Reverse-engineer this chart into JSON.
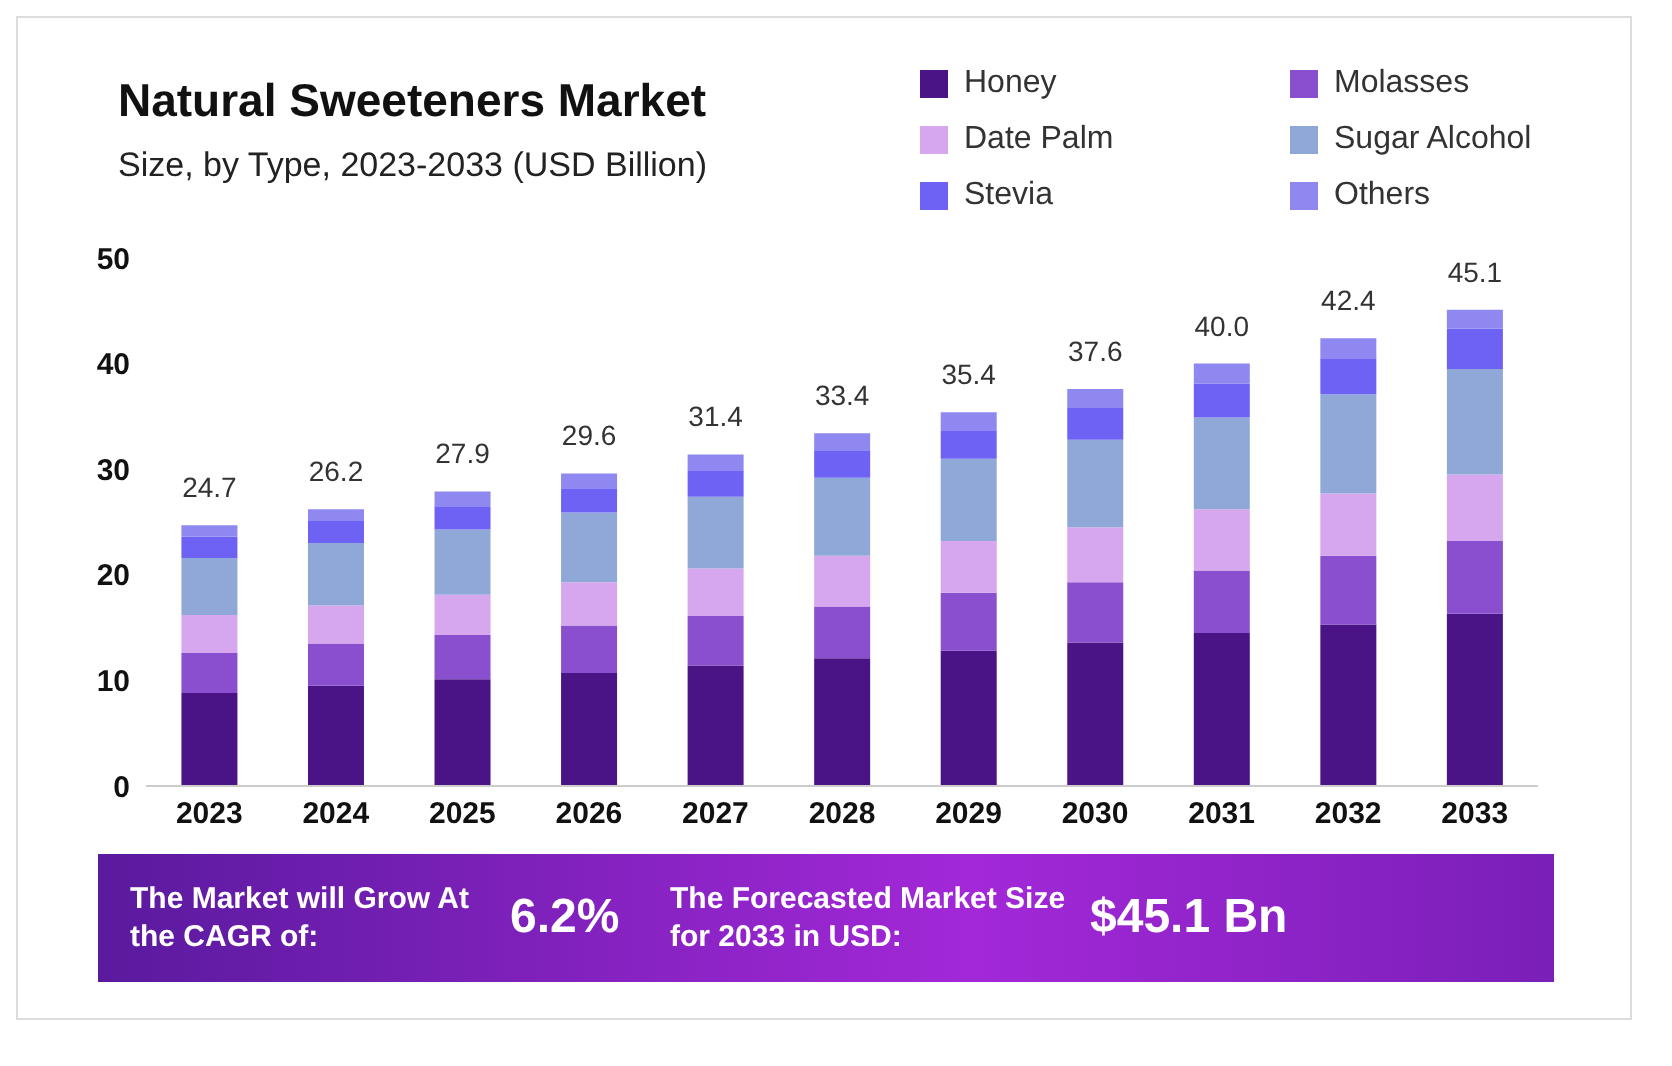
{
  "chart_data": {
    "type": "bar",
    "title": "Natural Sweeteners Market",
    "subtitle": "Size, by Type, 2023-2033 (USD Billion)",
    "categories": [
      "2023",
      "2024",
      "2025",
      "2026",
      "2027",
      "2028",
      "2029",
      "2030",
      "2031",
      "2032",
      "2033"
    ],
    "stacked": true,
    "ylim": [
      0,
      50
    ],
    "yticks": [
      0,
      10,
      20,
      30,
      40,
      50
    ],
    "grid": false,
    "legend": "top right",
    "series": [
      {
        "name": "Honey",
        "color": "#4a1486",
        "values": [
          8.8,
          9.5,
          10.1,
          10.7,
          11.4,
          12.1,
          12.8,
          13.6,
          14.5,
          15.3,
          16.3
        ]
      },
      {
        "name": "Molasses",
        "color": "#8a4fcf",
        "values": [
          3.8,
          4.0,
          4.2,
          4.5,
          4.7,
          4.9,
          5.5,
          5.7,
          5.9,
          6.5,
          6.9
        ]
      },
      {
        "name": "Date Palm",
        "color": "#d6a6ee",
        "values": [
          3.6,
          3.6,
          3.8,
          4.1,
          4.5,
          4.8,
          4.9,
          5.2,
          5.8,
          5.9,
          6.3
        ]
      },
      {
        "name": "Sugar Alcohol",
        "color": "#8fa8d8",
        "values": [
          5.4,
          5.9,
          6.2,
          6.6,
          6.8,
          7.4,
          7.8,
          8.3,
          8.7,
          9.4,
          10.0
        ]
      },
      {
        "name": "Stevia",
        "color": "#6e62f5",
        "values": [
          2.0,
          2.1,
          2.2,
          2.3,
          2.5,
          2.6,
          2.7,
          3.0,
          3.2,
          3.4,
          3.8
        ]
      },
      {
        "name": "Others",
        "color": "#8e88f0",
        "values": [
          1.1,
          1.1,
          1.4,
          1.4,
          1.5,
          1.6,
          1.7,
          1.8,
          1.9,
          1.9,
          1.8
        ]
      }
    ],
    "totals": [
      "24.7",
      "26.2",
      "27.9",
      "29.6",
      "31.4",
      "33.4",
      "35.4",
      "37.6",
      "40.0",
      "42.4",
      "45.1"
    ],
    "annotations": [
      "The Market will Grow At the CAGR of:",
      "6.2%",
      "The Forecasted Market Size for 2033 in USD:",
      "$45.1 Bn"
    ]
  }
}
